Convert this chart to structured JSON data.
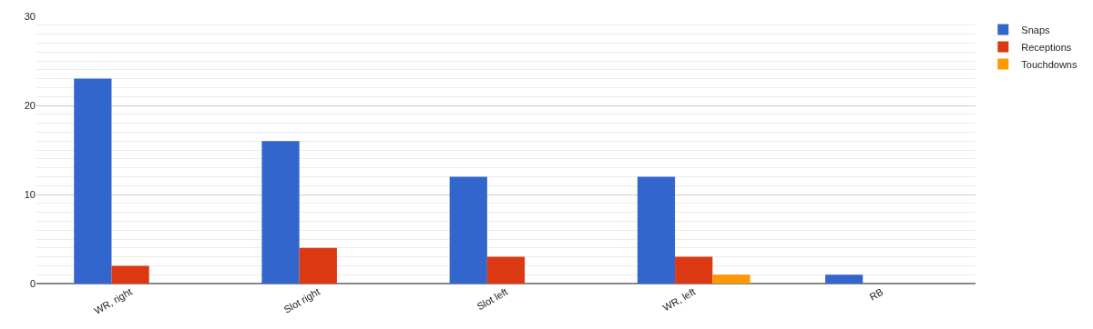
{
  "chart_data": {
    "type": "bar",
    "categories": [
      "WR, right",
      "Slot right",
      "Slot left",
      "WR, left",
      "RB"
    ],
    "series": [
      {
        "name": "Snaps",
        "color": "#3366cc",
        "values": [
          23,
          16,
          12,
          12,
          1
        ]
      },
      {
        "name": "Receptions",
        "color": "#dc3912",
        "values": [
          2,
          4,
          3,
          3,
          0
        ]
      },
      {
        "name": "Touchdowns",
        "color": "#ff9900",
        "values": [
          0,
          0,
          0,
          1,
          0
        ]
      }
    ],
    "ylim": [
      0,
      30
    ],
    "yticks": [
      0,
      10,
      20,
      30
    ],
    "grid": true,
    "legend": "top right"
  }
}
